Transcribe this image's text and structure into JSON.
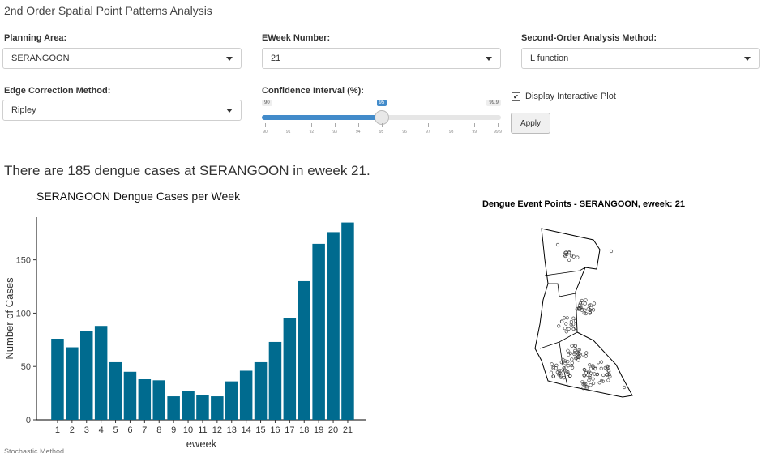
{
  "app_title": "2nd Order Spatial Point Patterns Analysis",
  "controls": {
    "planning_area": {
      "label": "Planning Area:",
      "value": "SERANGOON"
    },
    "eweek": {
      "label": "EWeek Number:",
      "value": "21"
    },
    "method": {
      "label": "Second-Order Analysis Method:",
      "value": "L function"
    },
    "edge": {
      "label": "Edge Correction Method:",
      "value": "Ripley"
    },
    "confidence": {
      "label": "Confidence Interval (%):",
      "min": "90",
      "max": "99.9",
      "value": "95",
      "value_fraction": 0.5,
      "ticks": [
        "90",
        "91",
        "92",
        "93",
        "94",
        "95",
        "96",
        "97",
        "98",
        "99",
        "99.9"
      ]
    },
    "display_interactive": {
      "label": "Display Interactive Plot",
      "checked": true
    },
    "apply_label": "Apply"
  },
  "summary": "There are 185 dengue cases at SERANGOON in eweek 21.",
  "chart_data": {
    "type": "bar",
    "title": "SERANGOON Dengue Cases per Week",
    "xlabel": "eweek",
    "ylabel": "Number of Cases",
    "categories": [
      "1",
      "2",
      "3",
      "4",
      "5",
      "6",
      "7",
      "8",
      "9",
      "10",
      "11",
      "12",
      "13",
      "14",
      "15",
      "16",
      "17",
      "18",
      "19",
      "20",
      "21"
    ],
    "values": [
      76,
      68,
      83,
      88,
      54,
      45,
      38,
      37,
      22,
      27,
      23,
      22,
      36,
      46,
      54,
      73,
      95,
      130,
      165,
      176,
      185
    ],
    "yticks": [
      0,
      50,
      100,
      150
    ],
    "ylim": [
      0,
      190
    ],
    "bar_color": "#006b8f",
    "grid": false
  },
  "map": {
    "title": "Dengue Event Points - SERANGOON, eweek: 21"
  },
  "footer_fragment": "Stochastic Method..."
}
